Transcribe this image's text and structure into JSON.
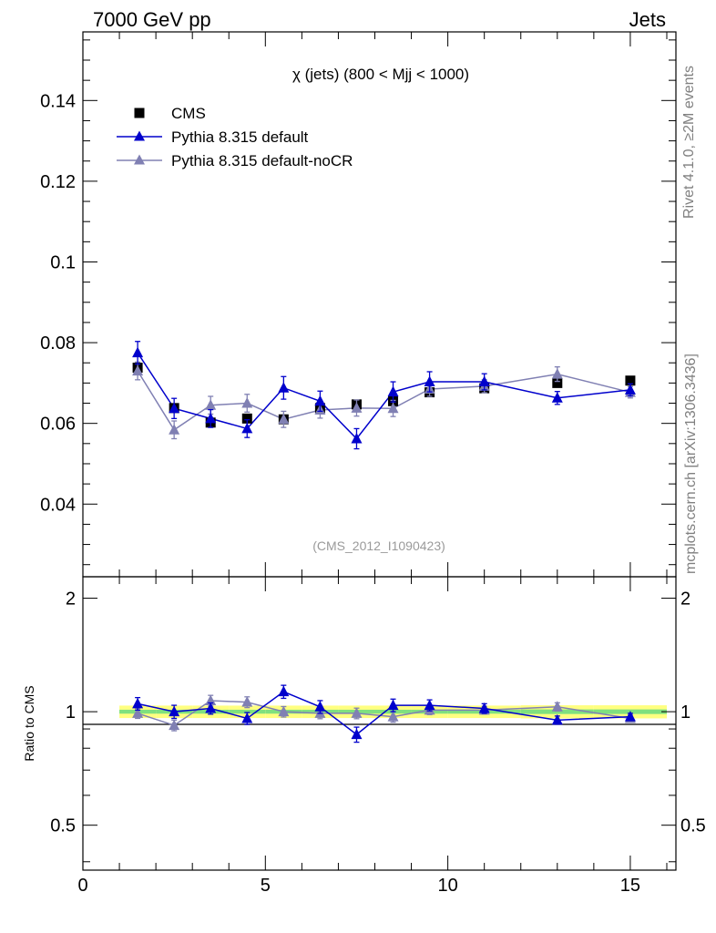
{
  "header": {
    "left": "7000 GeV pp",
    "right": "Jets"
  },
  "side_labels": {
    "rivet": "Rivet 4.1.0, ≥2M events",
    "mcplots": "mcplots.cern.ch [arXiv:1306.3436]"
  },
  "colors": {
    "data": "#000000",
    "default": "#0000cc",
    "noCR": "#8080b3",
    "band_inner": "#7fe07f",
    "band_outer": "#ffff80"
  },
  "chart_data": [
    {
      "type": "scatter",
      "panel": "main",
      "title": "χ (jets) (800 < Mjj < 1000)",
      "watermark": "(CMS_2012_I1090423)",
      "xlim": [
        0,
        16.25
      ],
      "ylim": [
        0.022,
        0.157
      ],
      "ylabel": "",
      "yticks": [
        0.04,
        0.06,
        0.08,
        0.1,
        0.12,
        0.14
      ],
      "ytick_labels": [
        "0.04",
        "0.06",
        "0.08",
        "0.1",
        "0.12",
        "0.14"
      ],
      "legend_position": "top-left",
      "x": [
        1.5,
        2.5,
        3.5,
        4.5,
        5.5,
        6.5,
        7.5,
        8.5,
        9.5,
        11,
        13,
        15
      ],
      "series": [
        {
          "name": "CMS",
          "marker": "square",
          "values": [
            0.0738,
            0.0638,
            0.0602,
            0.0612,
            0.061,
            0.0638,
            0.0647,
            0.0655,
            0.0677,
            0.0687,
            0.07,
            0.0706
          ],
          "errors": [
            0.0008,
            0.0008,
            0.0008,
            0.0008,
            0.0008,
            0.0008,
            0.0008,
            0.0008,
            0.0008,
            0.0008,
            0.001,
            0.001
          ]
        },
        {
          "name": "Pythia 8.315 default",
          "marker": "triangle",
          "values": [
            0.0775,
            0.0637,
            0.0612,
            0.0587,
            0.0688,
            0.0655,
            0.0562,
            0.0678,
            0.0703,
            0.0703,
            0.0663,
            0.0683
          ],
          "errors": [
            0.0028,
            0.0025,
            0.0022,
            0.0022,
            0.0028,
            0.0025,
            0.0025,
            0.0025,
            0.0025,
            0.002,
            0.0016,
            0.0015
          ]
        },
        {
          "name": "Pythia 8.315 default-noCR",
          "marker": "triangle",
          "values": [
            0.073,
            0.0584,
            0.0645,
            0.065,
            0.061,
            0.0633,
            0.0638,
            0.0637,
            0.0685,
            0.0692,
            0.0722,
            0.0677
          ],
          "errors": [
            0.0022,
            0.0022,
            0.0022,
            0.0022,
            0.002,
            0.002,
            0.002,
            0.002,
            0.0018,
            0.0016,
            0.0018,
            0.0014
          ]
        }
      ]
    },
    {
      "type": "scatter",
      "panel": "ratio",
      "xlim": [
        0,
        16.25
      ],
      "ylim": [
        0.38,
        2.28
      ],
      "ylabel": "Ratio to CMS",
      "yscale": "log",
      "yticks": [
        0.5,
        1,
        2
      ],
      "ytick_labels": [
        "0.5",
        "1",
        "2"
      ],
      "xticks": [
        0,
        5,
        10,
        15
      ],
      "xtick_labels": [
        "0",
        "5",
        "10",
        "15"
      ],
      "x": [
        1.5,
        2.5,
        3.5,
        4.5,
        5.5,
        6.5,
        7.5,
        8.5,
        9.5,
        11,
        13,
        15
      ],
      "band_x_edges": [
        1,
        2,
        3,
        4,
        5,
        6,
        7,
        8,
        9,
        10,
        12,
        14,
        16
      ],
      "band_inner": [
        0.012,
        0.012,
        0.012,
        0.012,
        0.012,
        0.012,
        0.012,
        0.012,
        0.012,
        0.012,
        0.014,
        0.014
      ],
      "band_outer": [
        0.038,
        0.038,
        0.038,
        0.038,
        0.038,
        0.038,
        0.038,
        0.038,
        0.038,
        0.038,
        0.04,
        0.04
      ],
      "series": [
        {
          "name": "Pythia 8.315 default",
          "values": [
            1.05,
            1.0,
            1.02,
            0.96,
            1.13,
            1.03,
            0.87,
            1.04,
            1.04,
            1.02,
            0.95,
            0.97
          ],
          "errors": [
            0.04,
            0.04,
            0.035,
            0.035,
            0.045,
            0.04,
            0.04,
            0.04,
            0.035,
            0.03,
            0.024,
            0.02
          ]
        },
        {
          "name": "Pythia 8.315 default-noCR",
          "values": [
            0.99,
            0.92,
            1.07,
            1.06,
            1.0,
            0.99,
            0.99,
            0.97,
            1.01,
            1.01,
            1.03,
            0.96
          ],
          "errors": [
            0.03,
            0.03,
            0.035,
            0.035,
            0.032,
            0.032,
            0.032,
            0.032,
            0.028,
            0.024,
            0.026,
            0.02
          ]
        }
      ]
    }
  ]
}
